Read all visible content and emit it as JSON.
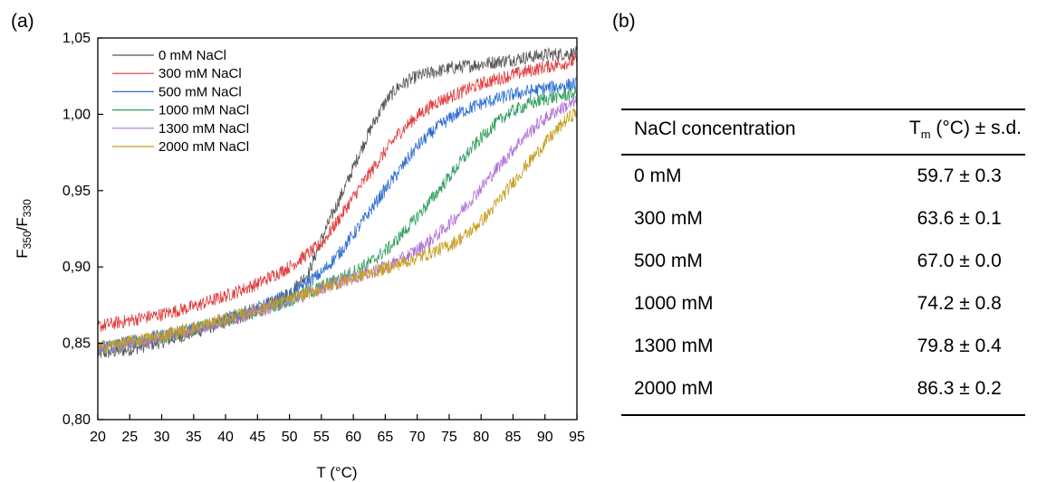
{
  "panel_a_label": "(a)",
  "panel_b_label": "(b)",
  "chart_data": {
    "type": "line",
    "xlabel": "T (°C)",
    "ylabel": {
      "main": "F",
      "sub1": "350",
      "slash": "/F",
      "sub2": "330"
    },
    "xlim": [
      20,
      95
    ],
    "ylim": [
      0.8,
      1.05
    ],
    "x_ticks": [
      20,
      25,
      30,
      35,
      40,
      45,
      50,
      55,
      60,
      65,
      70,
      75,
      80,
      85,
      90,
      95
    ],
    "y_ticks": [
      0.8,
      0.85,
      0.9,
      0.95,
      1.0,
      1.05
    ],
    "y_tick_labels": [
      "0,80",
      "0,85",
      "0,90",
      "0,95",
      "1,00",
      "1,05"
    ],
    "grid": false,
    "legend_position": "top-left",
    "series": [
      {
        "name": "0 mM NaCl",
        "color": "#555555",
        "x": [
          20,
          25,
          30,
          35,
          40,
          45,
          50,
          53,
          55,
          57,
          59,
          61,
          63,
          65,
          67,
          70,
          75,
          80,
          85,
          90,
          95
        ],
        "y": [
          0.843,
          0.846,
          0.851,
          0.857,
          0.864,
          0.871,
          0.883,
          0.896,
          0.918,
          0.937,
          0.955,
          0.975,
          0.993,
          1.008,
          1.018,
          1.025,
          1.03,
          1.033,
          1.036,
          1.039,
          1.04
        ]
      },
      {
        "name": "300 mM NaCl",
        "color": "#e03c3c",
        "x": [
          20,
          25,
          30,
          35,
          40,
          45,
          50,
          55,
          58,
          61,
          64,
          67,
          70,
          73,
          76,
          80,
          85,
          90,
          95
        ],
        "y": [
          0.861,
          0.865,
          0.869,
          0.874,
          0.881,
          0.889,
          0.9,
          0.915,
          0.933,
          0.952,
          0.97,
          0.987,
          0.999,
          1.008,
          1.013,
          1.02,
          1.026,
          1.031,
          1.035
        ]
      },
      {
        "name": "500 mM NaCl",
        "color": "#2e6fd0",
        "x": [
          20,
          25,
          30,
          35,
          40,
          45,
          50,
          55,
          58,
          61,
          64,
          67,
          70,
          73,
          76,
          80,
          85,
          90,
          95
        ],
        "y": [
          0.847,
          0.851,
          0.855,
          0.86,
          0.866,
          0.873,
          0.882,
          0.896,
          0.91,
          0.927,
          0.945,
          0.962,
          0.979,
          0.991,
          1.0,
          1.007,
          1.013,
          1.017,
          1.02
        ]
      },
      {
        "name": "1000 mM NaCl",
        "color": "#2f9e5e",
        "x": [
          20,
          25,
          30,
          35,
          40,
          45,
          50,
          55,
          60,
          63,
          66,
          69,
          72,
          75,
          78,
          81,
          84,
          87,
          90,
          95
        ],
        "y": [
          0.846,
          0.85,
          0.854,
          0.859,
          0.865,
          0.871,
          0.878,
          0.887,
          0.897,
          0.904,
          0.914,
          0.928,
          0.943,
          0.959,
          0.975,
          0.989,
          1.0,
          1.006,
          1.01,
          1.014
        ]
      },
      {
        "name": "1300 mM NaCl",
        "color": "#b072d8",
        "x": [
          20,
          25,
          30,
          35,
          40,
          45,
          50,
          55,
          60,
          65,
          68,
          71,
          74,
          77,
          80,
          83,
          86,
          89,
          92,
          95
        ],
        "y": [
          0.846,
          0.85,
          0.854,
          0.859,
          0.865,
          0.871,
          0.878,
          0.886,
          0.893,
          0.9,
          0.906,
          0.914,
          0.924,
          0.937,
          0.952,
          0.967,
          0.982,
          0.994,
          1.003,
          1.008
        ]
      },
      {
        "name": "2000 mM NaCl",
        "color": "#c7a023",
        "x": [
          20,
          25,
          30,
          35,
          40,
          45,
          50,
          55,
          60,
          65,
          70,
          75,
          78,
          81,
          84,
          87,
          90,
          93,
          95
        ],
        "y": [
          0.847,
          0.851,
          0.855,
          0.86,
          0.866,
          0.872,
          0.879,
          0.886,
          0.893,
          0.899,
          0.906,
          0.914,
          0.922,
          0.934,
          0.95,
          0.966,
          0.981,
          0.995,
          1.002
        ]
      }
    ]
  },
  "table": {
    "header_left": "NaCl concentration",
    "header_right_main": "T",
    "header_right_sub": "m",
    "header_right_rest": " (°C) ± s.d.",
    "rows": [
      {
        "concentration": "0 mM",
        "tm": "59.7 ± 0.3"
      },
      {
        "concentration": "300 mM",
        "tm": "63.6 ± 0.1"
      },
      {
        "concentration": "500 mM",
        "tm": "67.0 ± 0.0"
      },
      {
        "concentration": "1000 mM",
        "tm": "74.2 ± 0.8"
      },
      {
        "concentration": "1300 mM",
        "tm": "79.8 ± 0.4"
      },
      {
        "concentration": "2000 mM",
        "tm": "86.3 ± 0.2"
      }
    ]
  }
}
